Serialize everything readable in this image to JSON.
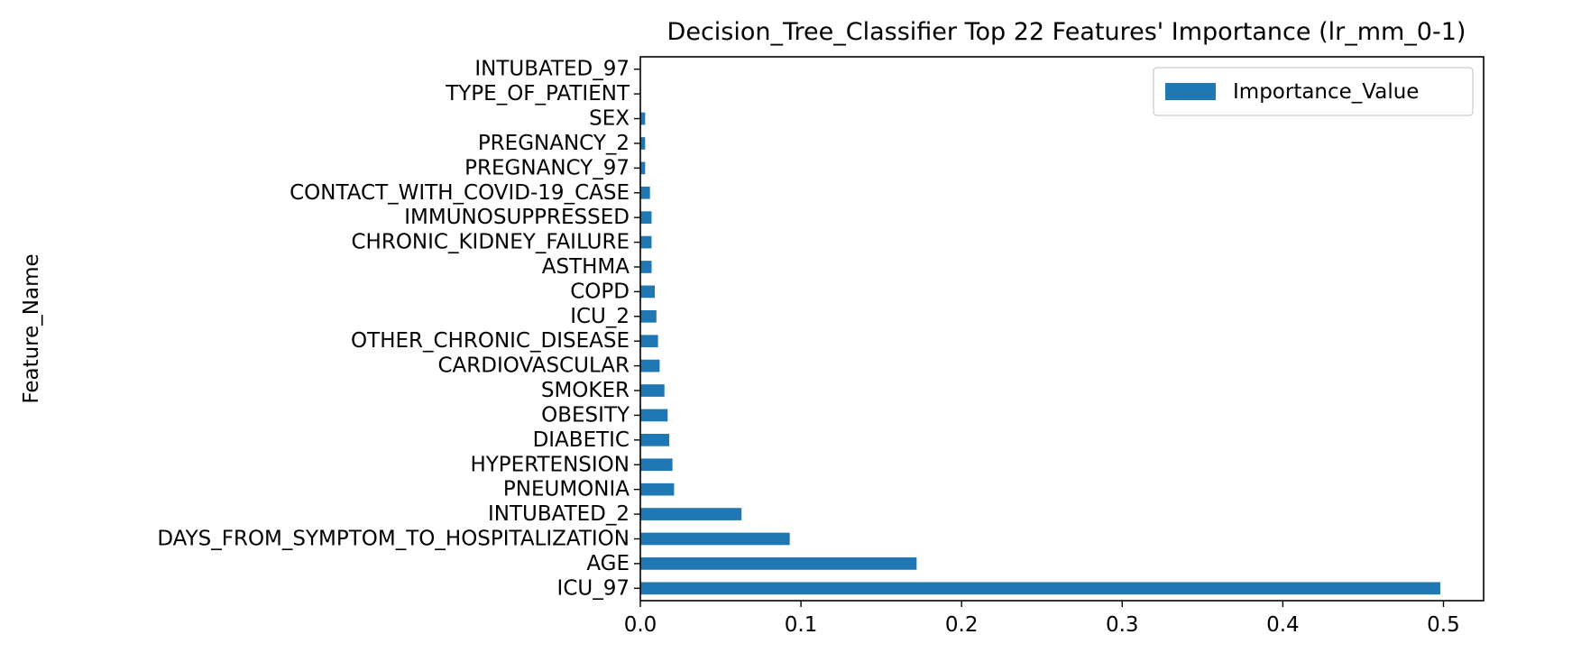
{
  "chart_data": {
    "type": "bar",
    "orientation": "horizontal",
    "title": "Decision_Tree_Classifier Top 22 Features' Importance (lr_mm_0-1)",
    "xlabel": "",
    "ylabel": "Feature_Name",
    "xlim": [
      0,
      0.525
    ],
    "xticks": [
      0.0,
      0.1,
      0.2,
      0.3,
      0.4,
      0.5
    ],
    "xtick_labels": [
      "0.0",
      "0.1",
      "0.2",
      "0.3",
      "0.4",
      "0.5"
    ],
    "grid": false,
    "legend_position": "top-right",
    "color": "#1f77b4",
    "categories": [
      "ICU_97",
      "AGE",
      "DAYS_FROM_SYMPTOM_TO_HOSPITALIZATION",
      "INTUBATED_2",
      "PNEUMONIA",
      "HYPERTENSION",
      "DIABETIC",
      "OBESITY",
      "SMOKER",
      "CARDIOVASCULAR",
      "OTHER_CHRONIC_DISEASE",
      "ICU_2",
      "COPD",
      "ASTHMA",
      "CHRONIC_KIDNEY_FAILURE",
      "IMMUNOSUPPRESSED",
      "CONTACT_WITH_COVID-19_CASE",
      "PREGNANCY_97",
      "PREGNANCY_2",
      "SEX",
      "TYPE_OF_PATIENT",
      "INTUBATED_97"
    ],
    "series": [
      {
        "name": "Importance_Value",
        "values": [
          0.498,
          0.172,
          0.093,
          0.063,
          0.021,
          0.02,
          0.018,
          0.017,
          0.015,
          0.012,
          0.011,
          0.01,
          0.009,
          0.007,
          0.007,
          0.007,
          0.006,
          0.003,
          0.003,
          0.003,
          0.0003,
          0.0001
        ]
      }
    ]
  }
}
